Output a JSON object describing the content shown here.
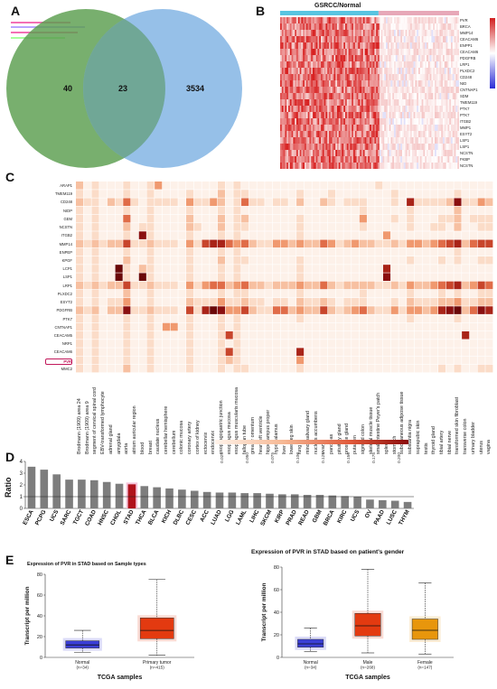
{
  "panels": {
    "a": "A",
    "b": "B",
    "c": "C",
    "d": "D",
    "e": "E"
  },
  "venn": {
    "left_only": "40",
    "overlap": "23",
    "right_only": "3534"
  },
  "heatmap_b": {
    "title": "GSRCC/Normal",
    "genes": [
      "PVR",
      "BRCA",
      "MMP14",
      "CEACAM6",
      "ENPP1",
      "CEACAM6",
      "PDGFRB",
      "LRP1",
      "PLXDC2",
      "CD248",
      "NID",
      "CNTNAP1",
      "SDM",
      "TMEM119",
      "PTK7",
      "PTK7",
      "ITGB2",
      "MMP1",
      "ESYT2",
      "LSP1",
      "LSP1",
      "NCSTN",
      "FKBP",
      "NCSTN"
    ],
    "colorbar_ticks": [
      "2",
      "1",
      "0",
      "-1",
      "-2"
    ]
  },
  "heatmap_c": {
    "genes": [
      "ARAP1",
      "TMEM119",
      "CD248",
      "NIDP",
      "GEM",
      "NCSTN",
      "ITGB2",
      "MMP14",
      "ENPEP",
      "KPGF",
      "LCP1",
      "LSP1",
      "LRP1",
      "PLXDC2",
      "ESYT2",
      "PDGFRB",
      "PTK7",
      "CNTNAP1",
      "CEACAM5",
      "NRP1",
      "CEACAM6",
      "PVR",
      "MMC2"
    ],
    "highlight_gene": "PVR",
    "tissues": [
      "Brodmann (1909) area 24",
      "Brodmann (1909) area 9",
      "segment of cervical spinal cord",
      "EBV-transformed lymphocyte",
      "adrenal gland",
      "amygdala",
      "aorta",
      "atrium auricular region",
      "blood",
      "breast",
      "caudate nucleus",
      "cerebellar hemisphere",
      "cerebellum",
      "colonic mucosa",
      "coronary artery",
      "cortex of kidney",
      "ectocervix",
      "endocervix",
      "esophagogastric junction",
      "esophagus mucosa",
      "esophagus muscularis mucosa",
      "fallopian tube",
      "greater omentum",
      "heart left ventricle",
      "hippocampus proper",
      "hypothalamus",
      "liver",
      "lower leg skin",
      "lung",
      "minor salivary gland",
      "nucleus accumbens",
      "ovary",
      "pancreas",
      "pituitary gland",
      "prostate gland",
      "putamen",
      "sigmoid colon",
      "skeletal muscle tissue",
      "small intestine Peyer's patch",
      "spleen",
      "stomach",
      "subcutaneous adipose tissue",
      "substantia nigra",
      "suprapubic skin",
      "testis",
      "thyroid gland",
      "tibial artery",
      "tibial nerve",
      "transformed skin fibroblast",
      "transverse colon",
      "urinary bladder",
      "uterus",
      "vagina"
    ],
    "colorbar_ticks": [
      "0.025",
      "0.050",
      "0.075",
      "0.100",
      "0.125",
      "0.150",
      "0.175",
      "0.200"
    ],
    "cells": [
      [
        2,
        0,
        1,
        0,
        0,
        0,
        1,
        0,
        0,
        1,
        3,
        0,
        0,
        0,
        0,
        0,
        0,
        0,
        1,
        0,
        1,
        0,
        0,
        0,
        0,
        0,
        0,
        0,
        0,
        0,
        0,
        0,
        0,
        0,
        0,
        0,
        0,
        0,
        1,
        0,
        0,
        0,
        0,
        0,
        0,
        0,
        0,
        0,
        0,
        0,
        0,
        0,
        0
      ],
      [
        1,
        0,
        1,
        0,
        0,
        0,
        1,
        0,
        0,
        1,
        0,
        0,
        0,
        0,
        1,
        0,
        0,
        0,
        2,
        0,
        1,
        1,
        0,
        0,
        0,
        0,
        0,
        0,
        1,
        0,
        0,
        0,
        1,
        0,
        0,
        0,
        0,
        0,
        0,
        0,
        1,
        0,
        0,
        0,
        0,
        0,
        0,
        0,
        1,
        0,
        0,
        0,
        0
      ],
      [
        2,
        1,
        1,
        0,
        2,
        1,
        4,
        1,
        0,
        1,
        1,
        1,
        1,
        0,
        3,
        1,
        1,
        3,
        2,
        0,
        1,
        4,
        1,
        1,
        0,
        1,
        1,
        0,
        2,
        0,
        0,
        2,
        1,
        0,
        1,
        1,
        1,
        0,
        0,
        0,
        1,
        0,
        6,
        1,
        1,
        1,
        1,
        2,
        7,
        1,
        1,
        3,
        2
      ],
      [
        1,
        0,
        1,
        0,
        0,
        0,
        1,
        0,
        0,
        1,
        0,
        0,
        0,
        0,
        1,
        0,
        0,
        0,
        1,
        0,
        1,
        0,
        0,
        0,
        0,
        0,
        0,
        0,
        0,
        0,
        0,
        0,
        0,
        0,
        0,
        0,
        1,
        0,
        0,
        0,
        0,
        0,
        1,
        0,
        0,
        0,
        0,
        0,
        2,
        0,
        0,
        0,
        0
      ],
      [
        1,
        0,
        1,
        0,
        0,
        0,
        4,
        0,
        0,
        1,
        0,
        0,
        0,
        0,
        2,
        0,
        0,
        0,
        2,
        0,
        1,
        2,
        0,
        0,
        0,
        0,
        0,
        0,
        1,
        0,
        0,
        0,
        0,
        0,
        0,
        0,
        3,
        0,
        0,
        0,
        1,
        0,
        1,
        0,
        0,
        0,
        1,
        1,
        2,
        0,
        1,
        1,
        1
      ],
      [
        1,
        0,
        1,
        0,
        0,
        0,
        2,
        0,
        1,
        1,
        0,
        0,
        0,
        0,
        2,
        1,
        0,
        0,
        2,
        0,
        1,
        1,
        0,
        0,
        0,
        0,
        0,
        0,
        1,
        0,
        0,
        0,
        0,
        0,
        0,
        0,
        1,
        0,
        0,
        0,
        0,
        0,
        1,
        0,
        0,
        1,
        1,
        0,
        2,
        0,
        0,
        1,
        1
      ],
      [
        1,
        0,
        1,
        0,
        0,
        0,
        1,
        0,
        7,
        1,
        0,
        0,
        0,
        0,
        1,
        0,
        0,
        0,
        1,
        0,
        1,
        0,
        0,
        0,
        0,
        0,
        0,
        0,
        1,
        0,
        0,
        0,
        0,
        0,
        0,
        0,
        0,
        0,
        0,
        3,
        0,
        0,
        0,
        0,
        0,
        0,
        0,
        0,
        0,
        0,
        0,
        0,
        0
      ],
      [
        2,
        1,
        2,
        1,
        2,
        2,
        5,
        1,
        1,
        2,
        1,
        1,
        1,
        0,
        3,
        1,
        5,
        6,
        6,
        4,
        3,
        4,
        2,
        1,
        1,
        3,
        3,
        2,
        3,
        2,
        2,
        4,
        3,
        1,
        2,
        3,
        2,
        2,
        1,
        1,
        2,
        1,
        3,
        3,
        2,
        3,
        4,
        5,
        6,
        2,
        4,
        5,
        5
      ],
      [
        1,
        0,
        1,
        0,
        0,
        0,
        1,
        0,
        0,
        1,
        0,
        0,
        0,
        0,
        1,
        0,
        0,
        0,
        1,
        0,
        1,
        0,
        0,
        0,
        0,
        0,
        0,
        0,
        0,
        0,
        0,
        0,
        0,
        0,
        0,
        0,
        0,
        0,
        0,
        0,
        0,
        0,
        0,
        0,
        0,
        0,
        0,
        0,
        1,
        0,
        0,
        0,
        0
      ],
      [
        1,
        0,
        1,
        0,
        0,
        0,
        2,
        0,
        0,
        1,
        0,
        0,
        0,
        0,
        1,
        0,
        0,
        0,
        2,
        0,
        1,
        1,
        0,
        0,
        0,
        0,
        0,
        0,
        1,
        0,
        0,
        0,
        0,
        0,
        0,
        0,
        0,
        0,
        0,
        0,
        0,
        0,
        1,
        0,
        0,
        0,
        1,
        0,
        1,
        0,
        0,
        1,
        1
      ],
      [
        1,
        0,
        1,
        0,
        0,
        8,
        1,
        0,
        2,
        1,
        0,
        0,
        0,
        0,
        1,
        0,
        0,
        0,
        1,
        0,
        1,
        0,
        0,
        0,
        0,
        0,
        0,
        0,
        1,
        0,
        0,
        0,
        0,
        0,
        0,
        0,
        0,
        0,
        0,
        6,
        0,
        0,
        0,
        0,
        0,
        0,
        0,
        0,
        0,
        0,
        0,
        0,
        0
      ],
      [
        1,
        0,
        1,
        0,
        0,
        8,
        1,
        0,
        8,
        1,
        0,
        0,
        0,
        0,
        1,
        0,
        0,
        0,
        1,
        0,
        1,
        0,
        0,
        0,
        0,
        0,
        0,
        0,
        1,
        0,
        0,
        0,
        0,
        0,
        0,
        0,
        0,
        0,
        0,
        7,
        0,
        0,
        0,
        0,
        0,
        0,
        0,
        0,
        0,
        0,
        0,
        0,
        0
      ],
      [
        2,
        1,
        2,
        1,
        2,
        2,
        5,
        1,
        1,
        2,
        1,
        1,
        1,
        0,
        3,
        1,
        3,
        4,
        4,
        2,
        3,
        4,
        2,
        2,
        1,
        2,
        2,
        2,
        3,
        2,
        2,
        4,
        2,
        1,
        2,
        2,
        2,
        2,
        1,
        1,
        2,
        1,
        3,
        2,
        2,
        3,
        4,
        5,
        6,
        2,
        3,
        5,
        4
      ],
      [
        1,
        0,
        1,
        0,
        0,
        0,
        2,
        0,
        0,
        1,
        0,
        0,
        0,
        0,
        1,
        0,
        0,
        0,
        1,
        0,
        1,
        1,
        0,
        0,
        0,
        0,
        0,
        0,
        1,
        0,
        0,
        0,
        0,
        0,
        0,
        0,
        1,
        0,
        0,
        0,
        0,
        0,
        1,
        0,
        0,
        0,
        1,
        0,
        1,
        0,
        0,
        1,
        1
      ],
      [
        1,
        0,
        1,
        0,
        1,
        1,
        3,
        0,
        0,
        1,
        0,
        0,
        0,
        0,
        2,
        1,
        1,
        1,
        3,
        1,
        1,
        2,
        1,
        1,
        0,
        1,
        1,
        0,
        2,
        1,
        1,
        2,
        1,
        0,
        1,
        1,
        1,
        0,
        0,
        0,
        1,
        0,
        2,
        1,
        1,
        1,
        2,
        2,
        3,
        1,
        1,
        2,
        2
      ],
      [
        2,
        1,
        2,
        0,
        2,
        2,
        7,
        1,
        1,
        2,
        1,
        1,
        1,
        0,
        5,
        1,
        6,
        8,
        7,
        3,
        3,
        5,
        2,
        1,
        1,
        4,
        4,
        2,
        3,
        2,
        2,
        5,
        2,
        1,
        2,
        3,
        4,
        2,
        1,
        1,
        3,
        1,
        3,
        3,
        2,
        3,
        6,
        7,
        8,
        2,
        4,
        7,
        6
      ],
      [
        1,
        0,
        1,
        0,
        0,
        0,
        1,
        0,
        0,
        1,
        0,
        0,
        0,
        0,
        1,
        0,
        0,
        0,
        1,
        0,
        1,
        0,
        0,
        0,
        0,
        0,
        0,
        0,
        1,
        0,
        0,
        0,
        0,
        0,
        0,
        0,
        0,
        0,
        0,
        0,
        0,
        0,
        1,
        0,
        0,
        0,
        0,
        0,
        1,
        0,
        0,
        0,
        0
      ],
      [
        1,
        0,
        1,
        0,
        0,
        0,
        1,
        0,
        0,
        1,
        0,
        3,
        3,
        0,
        1,
        0,
        0,
        0,
        1,
        0,
        1,
        0,
        0,
        0,
        0,
        0,
        0,
        0,
        0,
        0,
        0,
        0,
        0,
        0,
        0,
        0,
        0,
        0,
        0,
        0,
        0,
        0,
        0,
        0,
        0,
        0,
        0,
        0,
        0,
        0,
        0,
        0,
        0
      ],
      [
        1,
        0,
        1,
        0,
        0,
        0,
        1,
        0,
        0,
        1,
        0,
        0,
        0,
        0,
        1,
        0,
        0,
        0,
        1,
        5,
        1,
        0,
        0,
        0,
        0,
        0,
        0,
        0,
        0,
        0,
        0,
        0,
        0,
        0,
        0,
        0,
        0,
        0,
        0,
        0,
        0,
        0,
        0,
        0,
        0,
        0,
        0,
        0,
        0,
        6,
        0,
        0,
        0
      ],
      [
        1,
        0,
        1,
        0,
        0,
        0,
        1,
        0,
        0,
        1,
        0,
        0,
        0,
        0,
        1,
        0,
        0,
        0,
        1,
        0,
        1,
        0,
        0,
        0,
        0,
        0,
        0,
        0,
        0,
        0,
        0,
        0,
        0,
        0,
        0,
        0,
        0,
        0,
        0,
        0,
        0,
        0,
        0,
        0,
        0,
        0,
        0,
        0,
        0,
        0,
        0,
        0,
        0
      ],
      [
        1,
        0,
        1,
        0,
        0,
        0,
        1,
        0,
        0,
        1,
        0,
        0,
        0,
        0,
        1,
        0,
        0,
        0,
        1,
        5,
        1,
        0,
        0,
        0,
        0,
        0,
        0,
        0,
        6,
        0,
        0,
        0,
        0,
        0,
        0,
        0,
        0,
        0,
        0,
        0,
        0,
        0,
        0,
        0,
        0,
        0,
        0,
        0,
        0,
        0,
        0,
        0,
        0
      ],
      [
        1,
        0,
        1,
        0,
        0,
        0,
        1,
        0,
        0,
        1,
        0,
        0,
        0,
        0,
        1,
        0,
        0,
        0,
        1,
        2,
        1,
        0,
        0,
        0,
        0,
        0,
        0,
        0,
        3,
        0,
        0,
        0,
        0,
        0,
        0,
        0,
        0,
        0,
        0,
        0,
        0,
        0,
        0,
        0,
        0,
        0,
        0,
        0,
        0,
        0,
        0,
        0,
        0
      ],
      [
        1,
        0,
        1,
        0,
        0,
        0,
        2,
        0,
        0,
        1,
        0,
        0,
        0,
        0,
        1,
        0,
        0,
        0,
        1,
        0,
        1,
        1,
        0,
        0,
        0,
        0,
        0,
        0,
        1,
        0,
        0,
        0,
        0,
        0,
        0,
        0,
        0,
        0,
        0,
        0,
        0,
        0,
        0,
        0,
        0,
        0,
        1,
        0,
        1,
        0,
        0,
        1,
        1
      ]
    ]
  },
  "chart_data": [
    {
      "type": "bar",
      "ylabel": "Ratio",
      "categories": [
        "ESCA",
        "PCPG",
        "UCS",
        "SARC",
        "TGCT",
        "COAD",
        "HNSC",
        "CHOL",
        "STAD",
        "THCA",
        "BLCA",
        "KICH",
        "DLBC",
        "CESC",
        "ACC",
        "LUAD",
        "LGG",
        "LAML",
        "LIHC",
        "SKCM",
        "KIRP",
        "PRAD",
        "READ",
        "GBM",
        "BRCA",
        "KIRC",
        "UCS",
        "OV",
        "PAAD",
        "LUSC",
        "THYM"
      ],
      "values": [
        3.55,
        3.3,
        2.9,
        2.45,
        2.45,
        2.4,
        2.25,
        2.1,
        2.05,
        1.9,
        1.8,
        1.7,
        1.6,
        1.5,
        1.4,
        1.35,
        1.35,
        1.3,
        1.3,
        1.25,
        1.2,
        1.2,
        1.15,
        1.15,
        1.1,
        1.05,
        1.0,
        0.75,
        0.7,
        0.65,
        0.55
      ],
      "highlight": "STAD",
      "y_ticks": [
        "0",
        "1",
        "2",
        "3",
        "4"
      ],
      "ylim": [
        0,
        4
      ],
      "reference_line": 1
    },
    {
      "type": "box",
      "title": "Expression of PVR in STAD based on Sample types",
      "xlabel": "TCGA samples",
      "ylabel": "Transcript per million",
      "y_ticks": [
        "0",
        "20",
        "40",
        "60",
        "80"
      ],
      "ylim": [
        0,
        80
      ],
      "groups": [
        {
          "name": "Normal",
          "n": "(n=34)",
          "min": 5,
          "q1": 9,
          "median": 12,
          "q3": 16,
          "max": 26,
          "color": "#3b3fd6"
        },
        {
          "name": "Primary tumor",
          "n": "(n=415)",
          "min": 2,
          "q1": 18,
          "median": 26,
          "q3": 38,
          "max": 75,
          "color": "#e33a10"
        }
      ]
    },
    {
      "type": "box",
      "title": "Expression of PVR in STAD based on patient's gender",
      "xlabel": "TCGA samples",
      "ylabel": "Transcript per million",
      "y_ticks": [
        "0",
        "20",
        "40",
        "60",
        "80"
      ],
      "ylim": [
        0,
        80
      ],
      "groups": [
        {
          "name": "Normal",
          "n": "(n=34)",
          "min": 5,
          "q1": 9,
          "median": 12,
          "q3": 16,
          "max": 26,
          "color": "#3b3fd6"
        },
        {
          "name": "Male",
          "n": "(n=268)",
          "min": 4,
          "q1": 19,
          "median": 28,
          "q3": 39,
          "max": 78,
          "color": "#e33a10"
        },
        {
          "name": "Female",
          "n": "(n=147)",
          "min": 3,
          "q1": 16,
          "median": 24,
          "q3": 34,
          "max": 66,
          "color": "#e8960c"
        }
      ]
    }
  ]
}
